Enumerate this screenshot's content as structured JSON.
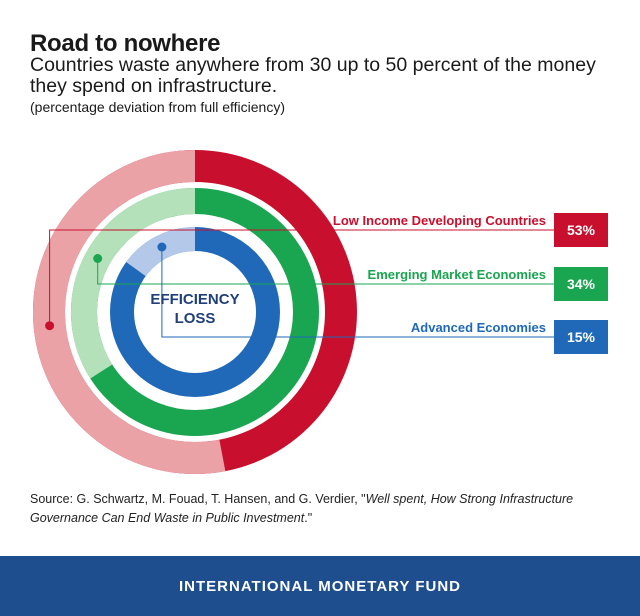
{
  "header": {
    "title": "Road to nowhere",
    "subtitle": "Countries waste anywhere from 30 up to 50 percent of the money they spend on infrastructure.",
    "note": "(percentage deviation from full efficiency)"
  },
  "chart_data": {
    "type": "pie",
    "title": "Road to nowhere",
    "center_label": [
      "EFFICIENCY",
      "LOSS"
    ],
    "series": [
      {
        "name": "Low Income Developing Countries",
        "value": 53,
        "label": "53%",
        "color": "#c8102e",
        "light_color": "#eba2a6"
      },
      {
        "name": "Emerging Market Economies",
        "value": 34,
        "label": "34%",
        "color": "#1aa550",
        "light_color": "#b4e1ba"
      },
      {
        "name": "Advanced Economies",
        "value": 15,
        "label": "15%",
        "color": "#1f69b8",
        "light_color": "#b4c8ea"
      }
    ]
  },
  "source": {
    "prefix": "Source: G. Schwartz, M. Fouad, T. Hansen, and G. Verdier, \"",
    "title": "Well spent, How Strong Infrastructure Governance Can End Waste in Public Investment",
    "suffix": ".\""
  },
  "footer": {
    "org": "INTERNATIONAL MONETARY FUND"
  }
}
